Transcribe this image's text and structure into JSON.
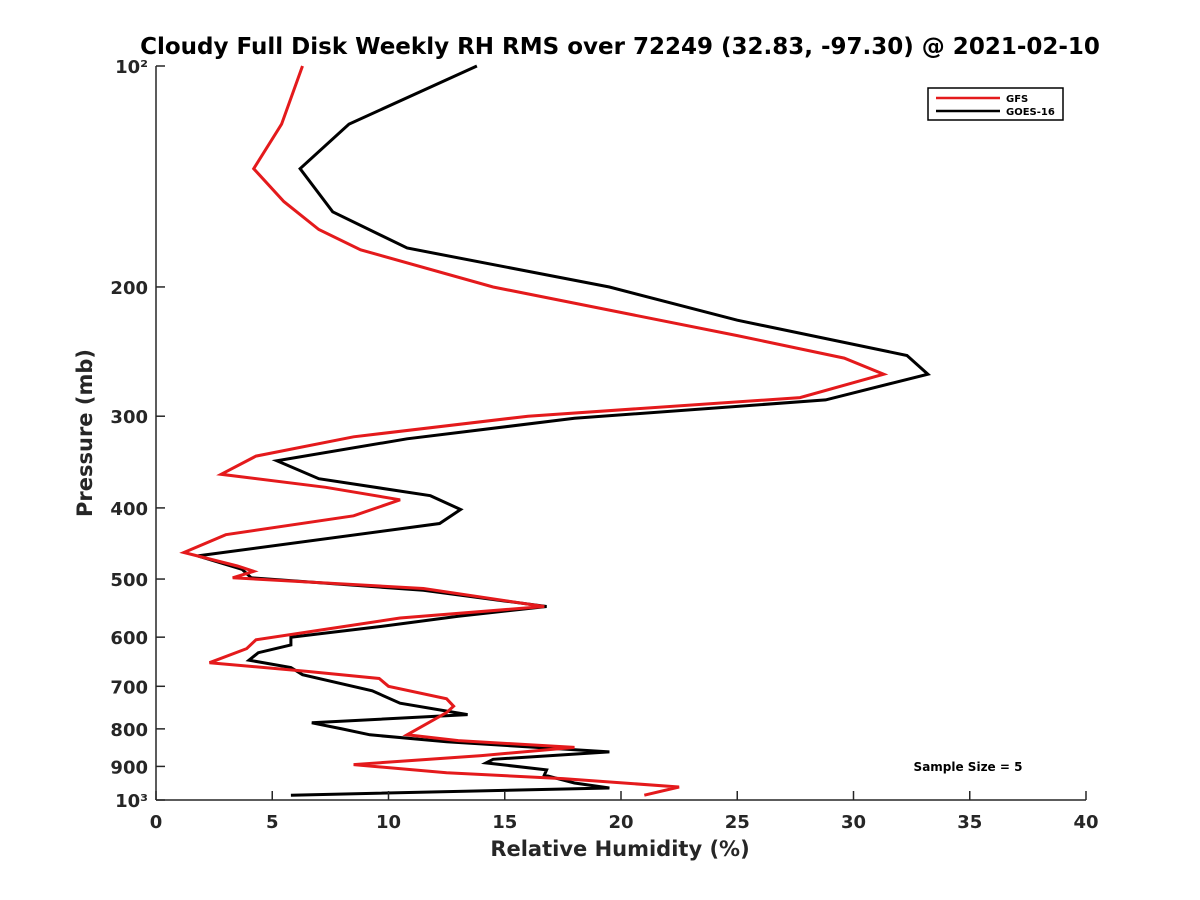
{
  "chart_data": {
    "type": "line",
    "title": "Cloudy Full Disk Weekly RH RMS over 72249 (32.83, -97.30) @ 2021-02-10",
    "xlabel": "Relative Humidity (%)",
    "ylabel": "Pressure (mb)",
    "xlim": [
      0,
      40
    ],
    "ylim": [
      100,
      1000
    ],
    "yscale": "log",
    "y_reversed": true,
    "x_ticks": [
      0,
      5,
      10,
      15,
      20,
      25,
      30,
      35,
      40
    ],
    "x_tick_labels": [
      "0",
      "5",
      "10",
      "15",
      "20",
      "25",
      "30",
      "35",
      "40"
    ],
    "y_ticks": [
      100,
      200,
      300,
      400,
      500,
      600,
      700,
      800,
      900,
      1000
    ],
    "y_tick_labels": [
      "10²",
      "200",
      "300",
      "400",
      "500",
      "600",
      "700",
      "800",
      "900",
      "10³"
    ],
    "grid": false,
    "legend_position": "top-right",
    "annotation": "Sample Size = 5",
    "series": [
      {
        "name": "GFS",
        "color": "#e41a1c",
        "points": [
          [
            6.3,
            100
          ],
          [
            5.4,
            120
          ],
          [
            4.2,
            138
          ],
          [
            5.5,
            153
          ],
          [
            7.0,
            167
          ],
          [
            8.8,
            178
          ],
          [
            14.5,
            200
          ],
          [
            25.0,
            233
          ],
          [
            29.6,
            250
          ],
          [
            31.3,
            263
          ],
          [
            27.7,
            283
          ],
          [
            16.0,
            300
          ],
          [
            8.5,
            320
          ],
          [
            4.3,
            340
          ],
          [
            2.8,
            360
          ],
          [
            7.3,
            375
          ],
          [
            10.5,
            390
          ],
          [
            8.5,
            410
          ],
          [
            3.0,
            435
          ],
          [
            1.2,
            460
          ],
          [
            3.5,
            480
          ],
          [
            4.2,
            488
          ],
          [
            3.3,
            498
          ],
          [
            11.5,
            515
          ],
          [
            16.7,
            545
          ],
          [
            10.5,
            565
          ],
          [
            7.8,
            582
          ],
          [
            4.3,
            605
          ],
          [
            3.9,
            622
          ],
          [
            2.3,
            650
          ],
          [
            6.5,
            668
          ],
          [
            9.6,
            683
          ],
          [
            10.0,
            700
          ],
          [
            12.5,
            728
          ],
          [
            12.8,
            745
          ],
          [
            12.5,
            760
          ],
          [
            10.8,
            815
          ],
          [
            13.0,
            830
          ],
          [
            18.0,
            848
          ],
          [
            14.0,
            870
          ],
          [
            8.5,
            895
          ],
          [
            12.5,
            918
          ],
          [
            17.5,
            935
          ],
          [
            22.5,
            960
          ],
          [
            21.0,
            985
          ]
        ]
      },
      {
        "name": "GOES-16",
        "color": "#000000",
        "points": [
          [
            13.8,
            100
          ],
          [
            8.3,
            120
          ],
          [
            6.2,
            138
          ],
          [
            7.6,
            158
          ],
          [
            10.8,
            177
          ],
          [
            19.5,
            200
          ],
          [
            25.0,
            222
          ],
          [
            32.3,
            248
          ],
          [
            33.2,
            263
          ],
          [
            28.8,
            285
          ],
          [
            18.0,
            302
          ],
          [
            10.8,
            322
          ],
          [
            5.2,
            345
          ],
          [
            7.0,
            365
          ],
          [
            11.8,
            385
          ],
          [
            13.1,
            402
          ],
          [
            12.2,
            420
          ],
          [
            1.8,
            465
          ],
          [
            3.7,
            485
          ],
          [
            4.1,
            498
          ],
          [
            11.5,
            518
          ],
          [
            16.8,
            545
          ],
          [
            13.0,
            562
          ],
          [
            9.7,
            580
          ],
          [
            5.8,
            600
          ],
          [
            5.8,
            615
          ],
          [
            4.4,
            630
          ],
          [
            4.0,
            645
          ],
          [
            5.8,
            660
          ],
          [
            6.3,
            675
          ],
          [
            9.3,
            710
          ],
          [
            10.5,
            738
          ],
          [
            13.4,
            765
          ],
          [
            6.7,
            785
          ],
          [
            8.0,
            800
          ],
          [
            9.2,
            815
          ],
          [
            12.5,
            833
          ],
          [
            19.5,
            860
          ],
          [
            14.5,
            880
          ],
          [
            14.2,
            890
          ],
          [
            16.8,
            910
          ],
          [
            16.7,
            925
          ],
          [
            18.0,
            948
          ],
          [
            19.5,
            963
          ],
          [
            5.8,
            985
          ]
        ]
      }
    ]
  }
}
